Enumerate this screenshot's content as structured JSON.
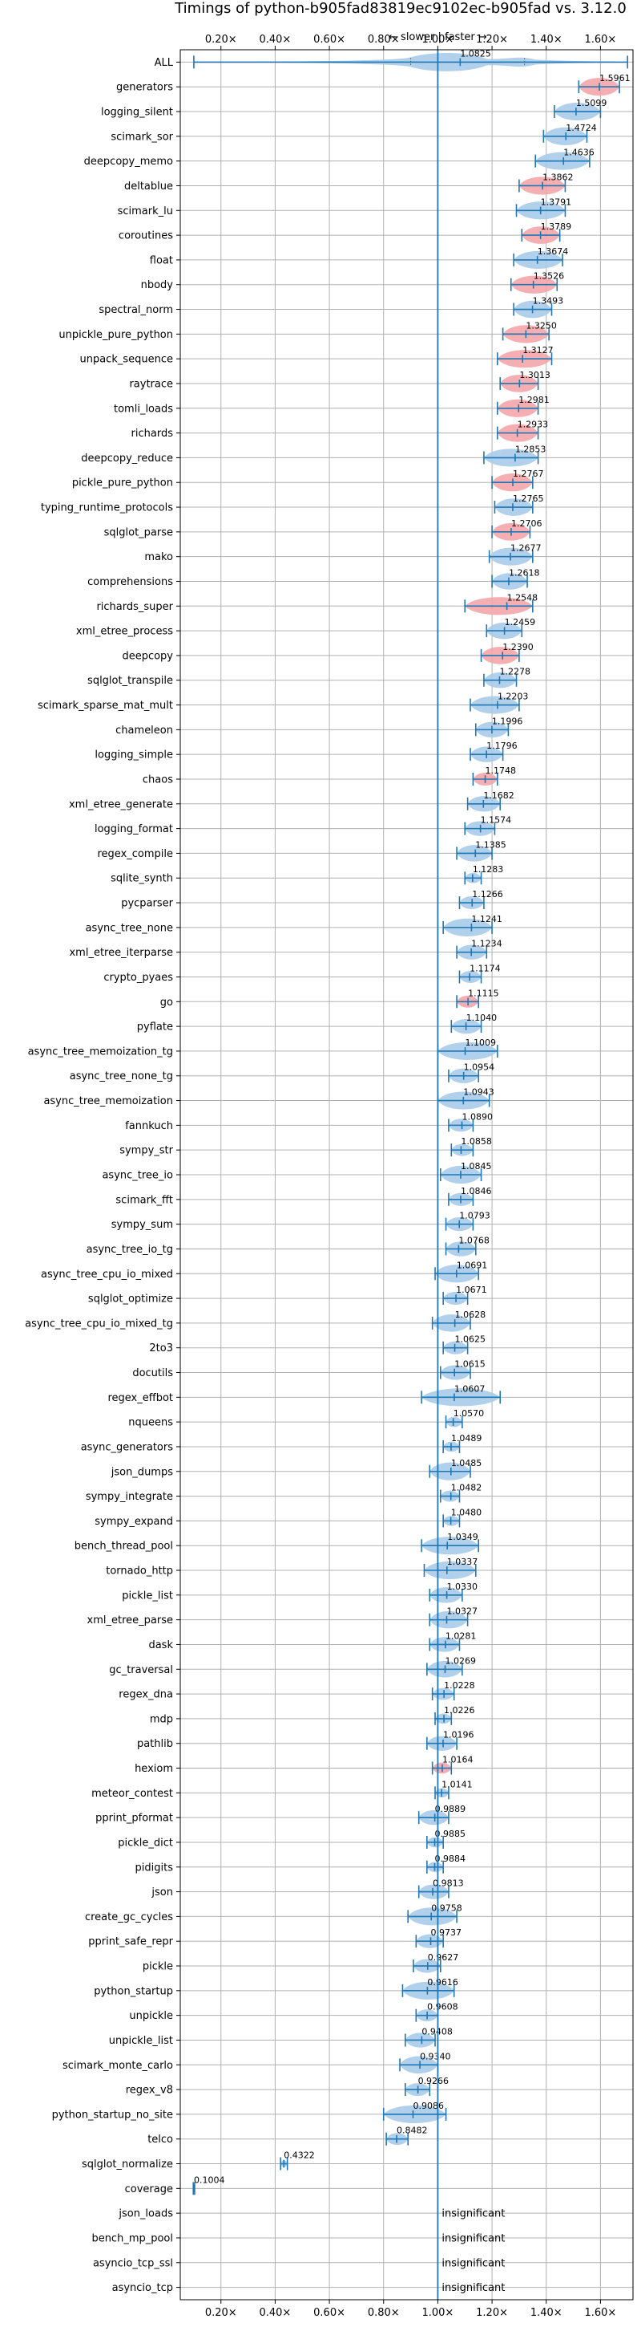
{
  "chart_data": {
    "type": "violin",
    "title": "Timings of python-b905fad83819ec9102ec-b905fad vs. 3.12.0",
    "direction_label": "← slower | faster →",
    "xlim": [
      0.05,
      1.72
    ],
    "x_ticks": [
      {
        "value": 0.2,
        "label": "0.20×"
      },
      {
        "value": 0.4,
        "label": "0.40×"
      },
      {
        "value": 0.6,
        "label": "0.60×"
      },
      {
        "value": 0.8,
        "label": "0.80×"
      },
      {
        "value": 1.0,
        "label": "1.00×"
      },
      {
        "value": 1.2,
        "label": "1.20×"
      },
      {
        "value": 1.4,
        "label": "1.40×"
      },
      {
        "value": 1.6,
        "label": "1.60×"
      }
    ],
    "insignificant_label": "insignificant",
    "colors": {
      "significant": "#f4a6aa",
      "neutral": "#a9cbe9",
      "lines": "#1f77b4"
    },
    "benchmarks": [
      {
        "name": "ALL",
        "value": 1.0825,
        "lo": 0.1,
        "hi": 1.7,
        "hl": false
      },
      {
        "name": "generators",
        "value": 1.5961,
        "lo": 1.52,
        "hi": 1.67,
        "hl": true
      },
      {
        "name": "logging_silent",
        "value": 1.5099,
        "lo": 1.43,
        "hi": 1.6,
        "hl": false
      },
      {
        "name": "scimark_sor",
        "value": 1.4724,
        "lo": 1.39,
        "hi": 1.55,
        "hl": false
      },
      {
        "name": "deepcopy_memo",
        "value": 1.4636,
        "lo": 1.36,
        "hi": 1.56,
        "hl": false
      },
      {
        "name": "deltablue",
        "value": 1.3862,
        "lo": 1.3,
        "hi": 1.47,
        "hl": true
      },
      {
        "name": "scimark_lu",
        "value": 1.3791,
        "lo": 1.29,
        "hi": 1.47,
        "hl": false
      },
      {
        "name": "coroutines",
        "value": 1.3789,
        "lo": 1.31,
        "hi": 1.45,
        "hl": true
      },
      {
        "name": "float",
        "value": 1.3674,
        "lo": 1.28,
        "hi": 1.46,
        "hl": false
      },
      {
        "name": "nbody",
        "value": 1.3526,
        "lo": 1.27,
        "hi": 1.44,
        "hl": true
      },
      {
        "name": "spectral_norm",
        "value": 1.3493,
        "lo": 1.28,
        "hi": 1.42,
        "hl": false
      },
      {
        "name": "unpickle_pure_python",
        "value": 1.325,
        "lo": 1.24,
        "hi": 1.41,
        "hl": true
      },
      {
        "name": "unpack_sequence",
        "value": 1.3127,
        "lo": 1.22,
        "hi": 1.42,
        "hl": true
      },
      {
        "name": "raytrace",
        "value": 1.3013,
        "lo": 1.23,
        "hi": 1.37,
        "hl": true
      },
      {
        "name": "tomli_loads",
        "value": 1.2981,
        "lo": 1.22,
        "hi": 1.37,
        "hl": true
      },
      {
        "name": "richards",
        "value": 1.2933,
        "lo": 1.22,
        "hi": 1.37,
        "hl": true
      },
      {
        "name": "deepcopy_reduce",
        "value": 1.2853,
        "lo": 1.17,
        "hi": 1.37,
        "hl": false
      },
      {
        "name": "pickle_pure_python",
        "value": 1.2767,
        "lo": 1.2,
        "hi": 1.35,
        "hl": true
      },
      {
        "name": "typing_runtime_protocols",
        "value": 1.2765,
        "lo": 1.21,
        "hi": 1.35,
        "hl": false
      },
      {
        "name": "sqlglot_parse",
        "value": 1.2706,
        "lo": 1.2,
        "hi": 1.34,
        "hl": true
      },
      {
        "name": "mako",
        "value": 1.2677,
        "lo": 1.19,
        "hi": 1.35,
        "hl": false
      },
      {
        "name": "comprehensions",
        "value": 1.2618,
        "lo": 1.2,
        "hi": 1.33,
        "hl": false
      },
      {
        "name": "richards_super",
        "value": 1.2548,
        "lo": 1.1,
        "hi": 1.35,
        "hl": true
      },
      {
        "name": "xml_etree_process",
        "value": 1.2459,
        "lo": 1.18,
        "hi": 1.31,
        "hl": false
      },
      {
        "name": "deepcopy",
        "value": 1.239,
        "lo": 1.16,
        "hi": 1.3,
        "hl": true
      },
      {
        "name": "sqlglot_transpile",
        "value": 1.2278,
        "lo": 1.17,
        "hi": 1.29,
        "hl": false
      },
      {
        "name": "scimark_sparse_mat_mult",
        "value": 1.2203,
        "lo": 1.12,
        "hi": 1.3,
        "hl": false
      },
      {
        "name": "chameleon",
        "value": 1.1996,
        "lo": 1.14,
        "hi": 1.26,
        "hl": false
      },
      {
        "name": "logging_simple",
        "value": 1.1796,
        "lo": 1.12,
        "hi": 1.24,
        "hl": false
      },
      {
        "name": "chaos",
        "value": 1.1748,
        "lo": 1.13,
        "hi": 1.22,
        "hl": true
      },
      {
        "name": "xml_etree_generate",
        "value": 1.1682,
        "lo": 1.11,
        "hi": 1.23,
        "hl": false
      },
      {
        "name": "logging_format",
        "value": 1.1574,
        "lo": 1.1,
        "hi": 1.21,
        "hl": false
      },
      {
        "name": "regex_compile",
        "value": 1.1385,
        "lo": 1.07,
        "hi": 1.2,
        "hl": false
      },
      {
        "name": "sqlite_synth",
        "value": 1.1283,
        "lo": 1.1,
        "hi": 1.16,
        "hl": false
      },
      {
        "name": "pycparser",
        "value": 1.1266,
        "lo": 1.08,
        "hi": 1.17,
        "hl": false
      },
      {
        "name": "async_tree_none",
        "value": 1.1241,
        "lo": 1.02,
        "hi": 1.2,
        "hl": false
      },
      {
        "name": "xml_etree_iterparse",
        "value": 1.1234,
        "lo": 1.07,
        "hi": 1.18,
        "hl": false
      },
      {
        "name": "crypto_pyaes",
        "value": 1.1174,
        "lo": 1.08,
        "hi": 1.16,
        "hl": false
      },
      {
        "name": "go",
        "value": 1.1115,
        "lo": 1.07,
        "hi": 1.15,
        "hl": true
      },
      {
        "name": "pyflate",
        "value": 1.104,
        "lo": 1.05,
        "hi": 1.16,
        "hl": false
      },
      {
        "name": "async_tree_memoization_tg",
        "value": 1.1009,
        "lo": 1.0,
        "hi": 1.22,
        "hl": false
      },
      {
        "name": "async_tree_none_tg",
        "value": 1.0954,
        "lo": 1.04,
        "hi": 1.15,
        "hl": false
      },
      {
        "name": "async_tree_memoization",
        "value": 1.0943,
        "lo": 1.0,
        "hi": 1.19,
        "hl": false
      },
      {
        "name": "fannkuch",
        "value": 1.089,
        "lo": 1.04,
        "hi": 1.13,
        "hl": false
      },
      {
        "name": "sympy_str",
        "value": 1.0858,
        "lo": 1.05,
        "hi": 1.13,
        "hl": false
      },
      {
        "name": "async_tree_io",
        "value": 1.0845,
        "lo": 1.01,
        "hi": 1.16,
        "hl": false
      },
      {
        "name": "scimark_fft",
        "value": 1.0846,
        "lo": 1.04,
        "hi": 1.13,
        "hl": false
      },
      {
        "name": "sympy_sum",
        "value": 1.0793,
        "lo": 1.03,
        "hi": 1.13,
        "hl": false
      },
      {
        "name": "async_tree_io_tg",
        "value": 1.0768,
        "lo": 1.03,
        "hi": 1.14,
        "hl": false
      },
      {
        "name": "async_tree_cpu_io_mixed",
        "value": 1.0691,
        "lo": 0.99,
        "hi": 1.15,
        "hl": false
      },
      {
        "name": "sqlglot_optimize",
        "value": 1.0671,
        "lo": 1.02,
        "hi": 1.11,
        "hl": false
      },
      {
        "name": "async_tree_cpu_io_mixed_tg",
        "value": 1.0628,
        "lo": 0.98,
        "hi": 1.12,
        "hl": false
      },
      {
        "name": "2to3",
        "value": 1.0625,
        "lo": 1.02,
        "hi": 1.11,
        "hl": false
      },
      {
        "name": "docutils",
        "value": 1.0615,
        "lo": 1.01,
        "hi": 1.12,
        "hl": false
      },
      {
        "name": "regex_effbot",
        "value": 1.0607,
        "lo": 0.94,
        "hi": 1.23,
        "hl": false
      },
      {
        "name": "nqueens",
        "value": 1.057,
        "lo": 1.03,
        "hi": 1.09,
        "hl": false
      },
      {
        "name": "async_generators",
        "value": 1.0489,
        "lo": 1.02,
        "hi": 1.08,
        "hl": false
      },
      {
        "name": "json_dumps",
        "value": 1.0485,
        "lo": 0.97,
        "hi": 1.12,
        "hl": false
      },
      {
        "name": "sympy_integrate",
        "value": 1.0482,
        "lo": 1.01,
        "hi": 1.08,
        "hl": false
      },
      {
        "name": "sympy_expand",
        "value": 1.048,
        "lo": 1.02,
        "hi": 1.08,
        "hl": false
      },
      {
        "name": "bench_thread_pool",
        "value": 1.0349,
        "lo": 0.94,
        "hi": 1.15,
        "hl": false
      },
      {
        "name": "tornado_http",
        "value": 1.0337,
        "lo": 0.95,
        "hi": 1.14,
        "hl": false
      },
      {
        "name": "pickle_list",
        "value": 1.033,
        "lo": 0.97,
        "hi": 1.09,
        "hl": false
      },
      {
        "name": "xml_etree_parse",
        "value": 1.0327,
        "lo": 0.97,
        "hi": 1.11,
        "hl": false
      },
      {
        "name": "dask",
        "value": 1.0281,
        "lo": 0.97,
        "hi": 1.08,
        "hl": false
      },
      {
        "name": "gc_traversal",
        "value": 1.0269,
        "lo": 0.96,
        "hi": 1.09,
        "hl": false
      },
      {
        "name": "regex_dna",
        "value": 1.0228,
        "lo": 0.98,
        "hi": 1.06,
        "hl": false
      },
      {
        "name": "mdp",
        "value": 1.0226,
        "lo": 0.99,
        "hi": 1.05,
        "hl": false
      },
      {
        "name": "pathlib",
        "value": 1.0196,
        "lo": 0.96,
        "hi": 1.07,
        "hl": false
      },
      {
        "name": "hexiom",
        "value": 1.0164,
        "lo": 0.98,
        "hi": 1.05,
        "hl": true
      },
      {
        "name": "meteor_contest",
        "value": 1.0141,
        "lo": 0.99,
        "hi": 1.04,
        "hl": false
      },
      {
        "name": "pprint_pformat",
        "value": 0.9889,
        "lo": 0.93,
        "hi": 1.04,
        "hl": false
      },
      {
        "name": "pickle_dict",
        "value": 0.9885,
        "lo": 0.96,
        "hi": 1.02,
        "hl": false
      },
      {
        "name": "pidigits",
        "value": 0.9884,
        "lo": 0.96,
        "hi": 1.02,
        "hl": false
      },
      {
        "name": "json",
        "value": 0.9813,
        "lo": 0.93,
        "hi": 1.04,
        "hl": false
      },
      {
        "name": "create_gc_cycles",
        "value": 0.9758,
        "lo": 0.89,
        "hi": 1.07,
        "hl": false
      },
      {
        "name": "pprint_safe_repr",
        "value": 0.9737,
        "lo": 0.92,
        "hi": 1.02,
        "hl": false
      },
      {
        "name": "pickle",
        "value": 0.9627,
        "lo": 0.91,
        "hi": 1.01,
        "hl": false
      },
      {
        "name": "python_startup",
        "value": 0.9616,
        "lo": 0.87,
        "hi": 1.06,
        "hl": false
      },
      {
        "name": "unpickle",
        "value": 0.9608,
        "lo": 0.92,
        "hi": 1.0,
        "hl": false
      },
      {
        "name": "unpickle_list",
        "value": 0.9408,
        "lo": 0.88,
        "hi": 0.99,
        "hl": false
      },
      {
        "name": "scimark_monte_carlo",
        "value": 0.934,
        "lo": 0.86,
        "hi": 1.0,
        "hl": false
      },
      {
        "name": "regex_v8",
        "value": 0.9266,
        "lo": 0.88,
        "hi": 0.97,
        "hl": false
      },
      {
        "name": "python_startup_no_site",
        "value": 0.9086,
        "lo": 0.8,
        "hi": 1.03,
        "hl": false
      },
      {
        "name": "telco",
        "value": 0.8482,
        "lo": 0.81,
        "hi": 0.89,
        "hl": false
      },
      {
        "name": "sqlglot_normalize",
        "value": 0.4322,
        "lo": 0.42,
        "hi": 0.445,
        "hl": false
      },
      {
        "name": "coverage",
        "value": 0.1004,
        "lo": 0.098,
        "hi": 0.103,
        "hl": false
      },
      {
        "name": "json_loads",
        "value": null,
        "insignificant": true
      },
      {
        "name": "bench_mp_pool",
        "value": null,
        "insignificant": true
      },
      {
        "name": "asyncio_tcp_ssl",
        "value": null,
        "insignificant": true
      },
      {
        "name": "asyncio_tcp",
        "value": null,
        "insignificant": true
      }
    ]
  }
}
